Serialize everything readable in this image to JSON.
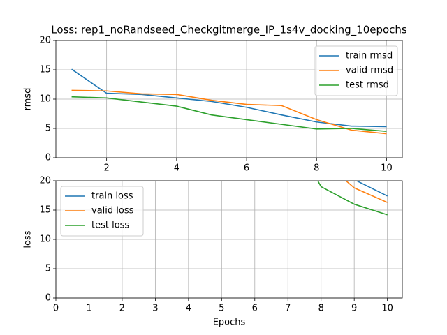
{
  "chart_data": [
    {
      "type": "line",
      "title": "Loss: rep1_noRandseed_Checkgitmerge_IP_1s4v_docking_10epochs",
      "y_label": "rmsd",
      "xlim": [
        0.55,
        10.45
      ],
      "ylim": [
        0,
        20
      ],
      "xticks": [
        2,
        4,
        6,
        8,
        10
      ],
      "yticks": [
        0,
        5,
        10,
        15,
        20
      ],
      "grid": true,
      "legend": "upper-right",
      "series": [
        {
          "name": "train rmsd",
          "color": "#1f77b4",
          "x": [
            1,
            2,
            3,
            4,
            5,
            6,
            7,
            8,
            9,
            10
          ],
          "values": [
            15.1,
            11.0,
            10.8,
            10.2,
            9.6,
            8.6,
            7.3,
            6.1,
            5.4,
            5.3
          ]
        },
        {
          "name": "valid rmsd",
          "color": "#ff7f0e",
          "x": [
            1,
            2,
            3,
            4,
            5,
            6,
            7,
            8,
            9,
            10
          ],
          "values": [
            11.5,
            11.4,
            10.9,
            10.8,
            9.8,
            9.1,
            8.9,
            6.5,
            4.7,
            4.1
          ]
        },
        {
          "name": "test rmsd",
          "color": "#2ca02c",
          "x": [
            1,
            2,
            3,
            4,
            5,
            6,
            7,
            8,
            9,
            10
          ],
          "values": [
            10.4,
            10.2,
            9.5,
            8.8,
            7.3,
            6.5,
            5.7,
            4.9,
            5.0,
            4.5
          ]
        }
      ]
    },
    {
      "type": "line",
      "x_label": "Epochs",
      "y_label": "loss",
      "xlim": [
        0,
        10.45
      ],
      "ylim": [
        0,
        20
      ],
      "xticks": [
        0,
        1,
        2,
        3,
        4,
        5,
        6,
        7,
        8,
        9,
        10
      ],
      "yticks": [
        0,
        5,
        10,
        15,
        20
      ],
      "grid": true,
      "legend": "upper-left",
      "series": [
        {
          "name": "train loss",
          "color": "#1f77b4",
          "x": [
            9,
            10
          ],
          "values": [
            20.2,
            17.4
          ]
        },
        {
          "name": "valid loss",
          "color": "#ff7f0e",
          "x": [
            8,
            9,
            10
          ],
          "values": [
            23.6,
            18.8,
            16.3
          ]
        },
        {
          "name": "test loss",
          "color": "#2ca02c",
          "x": [
            7,
            8,
            9,
            10
          ],
          "values": [
            29,
            19,
            16.0,
            14.2
          ]
        }
      ]
    }
  ]
}
